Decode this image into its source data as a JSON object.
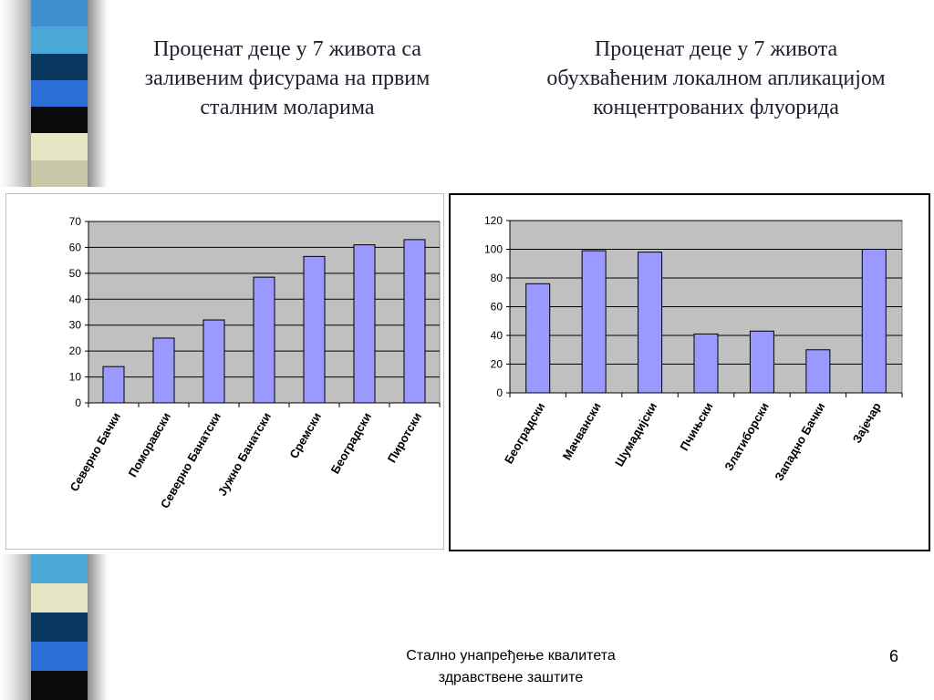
{
  "slide": {
    "title_left": "Проценат деце у 7 живота са заливеним фисурама на првим сталним моларима",
    "title_right": "Проценат деце у 7 живота обухваћеним локалном апликацијом концентрованих флуорида",
    "footer_line1": "Стално унапређење квалитета",
    "footer_line2": "здравствене заштите",
    "page_number": "6"
  },
  "decor": {
    "stripe_top_colors": [
      "#3f8fcf",
      "#4aa8d8",
      "#08365f",
      "#2b6fd6",
      "#0b0b0b",
      "#e6e6c4",
      "#c8c8a8"
    ],
    "stripe_bottom_colors": [
      "#4aa8d8",
      "#e6e6c4",
      "#08365f",
      "#2b6fd6",
      "#0b0b0b"
    ]
  },
  "colors": {
    "plot_area": "#c0c0c0",
    "bar_fill": "#9999ff",
    "bar_stroke": "#000000",
    "grid": "#000000",
    "axis_text": "#000000"
  },
  "chart_data": [
    {
      "type": "bar",
      "title": "",
      "xlabel": "",
      "ylabel": "",
      "categories": [
        "Северно Бачки",
        "Поморавски",
        "Северно Банатски",
        "Јужно Банатски",
        "Сремски",
        "Београдски",
        "Пиротски"
      ],
      "values": [
        14,
        25,
        32,
        48.5,
        56.5,
        61,
        63
      ],
      "ylim": [
        0,
        70
      ],
      "yticks": [
        0,
        10,
        20,
        30,
        40,
        50,
        60,
        70
      ],
      "grid": true,
      "legend": "none"
    },
    {
      "type": "bar",
      "title": "",
      "xlabel": "",
      "ylabel": "",
      "categories": [
        "Београдски",
        "Мачвански",
        "Шумадијски",
        "Пчињски",
        "Златиборски",
        "Западно Бачки",
        "Зајечар"
      ],
      "values": [
        76,
        99,
        98,
        41,
        43,
        30,
        100
      ],
      "ylim": [
        0,
        120
      ],
      "yticks": [
        0,
        20,
        40,
        60,
        80,
        100,
        120
      ],
      "grid": true,
      "legend": "none"
    }
  ]
}
